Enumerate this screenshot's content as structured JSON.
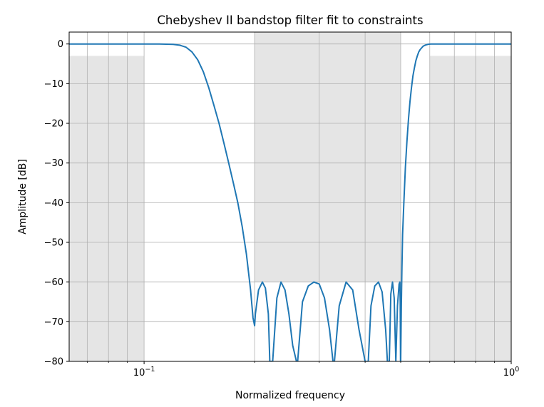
{
  "chart_data": {
    "type": "line",
    "title": "Chebyshev II bandstop filter fit to constraints",
    "xlabel": "Normalized frequency",
    "ylabel": "Amplitude [dB]",
    "xscale": "log",
    "xlim": [
      0.0625,
      1.0
    ],
    "ylim": [
      -80,
      3
    ],
    "grid": true,
    "x_major_ticks": [
      {
        "value": 0.1,
        "base": "10",
        "exp": "−1"
      },
      {
        "value": 1.0,
        "base": "10",
        "exp": "0"
      }
    ],
    "x_minor_gridlines": [
      0.07,
      0.08,
      0.09,
      0.2,
      0.3,
      0.4,
      0.5,
      0.6,
      0.7,
      0.8,
      0.9
    ],
    "y_ticks": [
      {
        "value": 0,
        "label": "0"
      },
      {
        "value": -10,
        "label": "−10"
      },
      {
        "value": -20,
        "label": "−20"
      },
      {
        "value": -30,
        "label": "−30"
      },
      {
        "value": -40,
        "label": "−40"
      },
      {
        "value": -50,
        "label": "−50"
      },
      {
        "value": -60,
        "label": "−60"
      },
      {
        "value": -70,
        "label": "−70"
      },
      {
        "value": -80,
        "label": "−80"
      }
    ],
    "constraint_regions": [
      {
        "x0": 0.0625,
        "x1": 0.1,
        "y0": -80,
        "y1": -3
      },
      {
        "x0": 0.2,
        "x1": 0.5,
        "y0": -60,
        "y1": 3
      },
      {
        "x0": 0.6,
        "x1": 1.0,
        "y0": -80,
        "y1": -3
      }
    ],
    "line_color": "#1f77b4",
    "region_color": "#e5e5e5",
    "series": [
      {
        "x": [
          0.0625,
          0.08,
          0.1,
          0.11,
          0.12,
          0.125,
          0.13,
          0.135,
          0.14,
          0.145,
          0.15,
          0.155,
          0.16,
          0.165,
          0.17,
          0.175,
          0.18,
          0.185,
          0.19,
          0.195,
          0.198,
          0.2,
          0.201,
          0.205,
          0.21,
          0.214,
          0.218,
          0.22,
          0.224,
          0.23,
          0.236,
          0.242,
          0.248,
          0.254,
          0.26,
          0.2605,
          0.262,
          0.27,
          0.28,
          0.29,
          0.3,
          0.31,
          0.32,
          0.327,
          0.3275,
          0.33,
          0.34,
          0.355,
          0.37,
          0.385,
          0.4,
          0.4075,
          0.408,
          0.415,
          0.425,
          0.435,
          0.445,
          0.455,
          0.46,
          0.465,
          0.4655,
          0.47,
          0.475,
          0.48,
          0.485,
          0.49,
          0.495,
          0.4975,
          0.4985,
          0.4995,
          0.5,
          0.502,
          0.504,
          0.506,
          0.51,
          0.515,
          0.52,
          0.525,
          0.53,
          0.535,
          0.54,
          0.545,
          0.55,
          0.555,
          0.56,
          0.565,
          0.57,
          0.575,
          0.58,
          0.585,
          0.59,
          0.595,
          0.6,
          0.605,
          0.61,
          0.62,
          0.64,
          0.7,
          0.8,
          1.0
        ],
        "y": [
          0,
          0,
          0,
          0,
          -0.1,
          -0.3,
          -0.8,
          -2,
          -4,
          -7,
          -11,
          -15.5,
          -20,
          -25,
          -30,
          -35,
          -40,
          -46,
          -53,
          -62,
          -69,
          -71,
          -68,
          -62,
          -60,
          -61.5,
          -68,
          -80,
          -80,
          -64,
          -60,
          -62,
          -68,
          -76,
          -80,
          -80,
          -80,
          -65,
          -61,
          -60,
          -60.5,
          -64,
          -72,
          -80,
          -80,
          -80,
          -66,
          -60,
          -62,
          -72,
          -80,
          -80,
          -80,
          -66,
          -61,
          -60,
          -62.5,
          -72,
          -80,
          -80,
          -80,
          -63,
          -60,
          -64,
          -80,
          -66,
          -60.5,
          -60,
          -65,
          -80,
          -80,
          -66,
          -56,
          -48,
          -40,
          -31,
          -24.5,
          -19,
          -14.5,
          -11,
          -8,
          -6,
          -4.2,
          -3,
          -2,
          -1.4,
          -1,
          -0.6,
          -0.4,
          -0.25,
          -0.15,
          -0.08,
          -0.04,
          -0.02,
          0,
          0,
          0,
          0,
          0,
          0
        ]
      }
    ]
  }
}
